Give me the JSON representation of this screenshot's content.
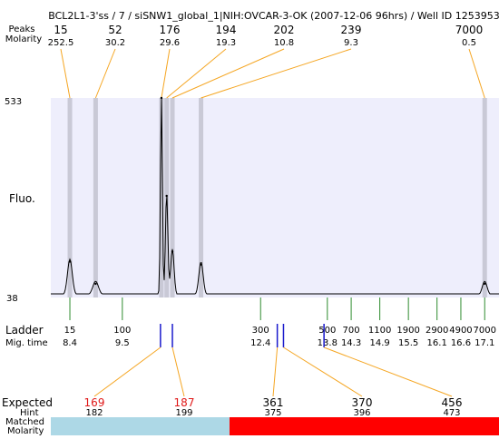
{
  "header": {
    "title": "BCL2L1-3'ss / 7 / siSNW1_global_1|NIH:OVCAR-3-OK (2007-12-06 96hrs) / Well ID 1253953",
    "row1_label": "Peaks",
    "row2_label": "Molarity"
  },
  "side_labels": {
    "y_max": "533",
    "y_min": "38",
    "fluo": "Fluo.",
    "ladder": "Ladder",
    "mig_time": "Mig. time",
    "expected": "Expected",
    "hint": "Hint",
    "matched": "Matched",
    "molarity": "Molarity"
  },
  "chart_data": {
    "type": "line",
    "ylabel": "Fluo.",
    "ylim": [
      38,
      533
    ],
    "xlim": [
      8.0,
      17.4
    ],
    "peaks": [
      {
        "size": "15",
        "molarity": "252.5",
        "time": 8.4,
        "height": 127
      },
      {
        "size": "52",
        "molarity": "30.2",
        "time": 8.94,
        "height": 72
      },
      {
        "size": "176",
        "molarity": "29.6",
        "time": 10.32,
        "height": 533
      },
      {
        "size": "194",
        "molarity": "19.3",
        "time": 10.43,
        "height": 290
      },
      {
        "size": "202",
        "molarity": "10.8",
        "time": 10.55,
        "height": 152
      },
      {
        "size": "239",
        "molarity": "9.3",
        "time": 11.15,
        "height": 120
      },
      {
        "size": "7000",
        "molarity": "0.5",
        "time": 17.1,
        "height": 72
      }
    ],
    "ladder": [
      {
        "size": "15",
        "time": "8.4",
        "t": 8.4
      },
      {
        "size": "100",
        "time": "9.5",
        "t": 9.5
      },
      {
        "size": "300",
        "time": "12.4",
        "t": 12.4
      },
      {
        "size": "500",
        "time": "13.8",
        "t": 13.8
      },
      {
        "size": "700",
        "time": "14.3",
        "t": 14.3
      },
      {
        "size": "1100",
        "time": "14.9",
        "t": 14.9
      },
      {
        "size": "1900",
        "time": "15.5",
        "t": 15.5
      },
      {
        "size": "2900",
        "time": "16.1",
        "t": 16.1
      },
      {
        "size": "4900",
        "time": "16.6",
        "t": 16.6
      },
      {
        "size": "7000",
        "time": "17.1",
        "t": 17.1
      }
    ],
    "expected": [
      {
        "expected": "169",
        "hint": "182",
        "matched": "176",
        "molarity": "29.6",
        "found": true,
        "t": 10.3
      },
      {
        "expected": "187",
        "hint": "199",
        "matched": "202",
        "molarity": "10.8",
        "found": true,
        "t": 10.55
      },
      {
        "expected": "361",
        "hint": "375",
        "matched": "X",
        "molarity": "X",
        "found": false,
        "t": 12.75
      },
      {
        "expected": "370",
        "hint": "396",
        "matched": "X",
        "molarity": "X",
        "found": false,
        "t": 12.88
      },
      {
        "expected": "456",
        "hint": "473",
        "matched": "X",
        "molarity": "X",
        "found": false,
        "t": 13.73
      }
    ]
  },
  "colors": {
    "plot_bg": "#eeeefc",
    "band": "#c9c9d6",
    "connector": "#f5a623",
    "ladder_tick": "#2e8b2e",
    "expected_tick": "#1a1acc",
    "found_red": "#e01818",
    "matched_bg": "#add8e6",
    "unmatched_bg": "#ff0000",
    "trace": "#000000"
  }
}
